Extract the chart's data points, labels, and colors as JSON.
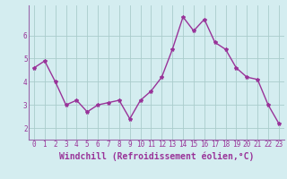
{
  "x": [
    0,
    1,
    2,
    3,
    4,
    5,
    6,
    7,
    8,
    9,
    10,
    11,
    12,
    13,
    14,
    15,
    16,
    17,
    18,
    19,
    20,
    21,
    22,
    23
  ],
  "y": [
    4.6,
    4.9,
    4.0,
    3.0,
    3.2,
    2.7,
    3.0,
    3.1,
    3.2,
    2.4,
    3.2,
    3.6,
    4.2,
    5.4,
    6.8,
    6.2,
    6.7,
    5.7,
    5.4,
    4.6,
    4.2,
    4.1,
    3.0,
    2.2
  ],
  "line_color": "#993399",
  "marker": "*",
  "marker_size": 3,
  "xlabel": "Windchill (Refroidissement éolien,°C)",
  "xlabel_fontsize": 7,
  "ylim": [
    1.5,
    7.3
  ],
  "xlim": [
    -0.5,
    23.5
  ],
  "yticks": [
    2,
    3,
    4,
    5,
    6
  ],
  "xticks": [
    0,
    1,
    2,
    3,
    4,
    5,
    6,
    7,
    8,
    9,
    10,
    11,
    12,
    13,
    14,
    15,
    16,
    17,
    18,
    19,
    20,
    21,
    22,
    23
  ],
  "grid_color": "#aacccc",
  "bg_color": "#d4edf0",
  "tick_color": "#993399",
  "tick_fontsize": 5.5,
  "line_width": 1.0,
  "spine_color": "#9966aa"
}
